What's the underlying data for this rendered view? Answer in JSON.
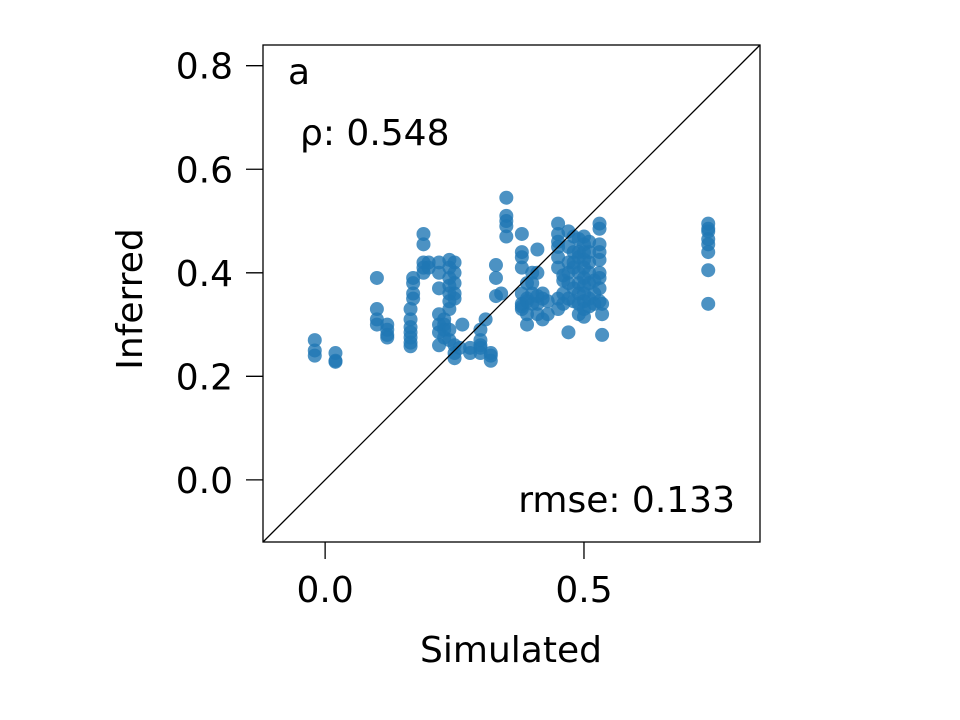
{
  "chart_data": {
    "type": "scatter",
    "panel_label": "a",
    "xlabel": "Simulated",
    "ylabel": "Inferred",
    "xlim": [
      -0.12,
      0.84
    ],
    "ylim": [
      -0.12,
      0.84
    ],
    "xticks": [
      0.0,
      0.5
    ],
    "xtick_labels": [
      "0.0",
      "0.5"
    ],
    "yticks": [
      0.0,
      0.2,
      0.4,
      0.6,
      0.8
    ],
    "ytick_labels": [
      "0.0",
      "0.2",
      "0.4",
      "0.6",
      "0.8"
    ],
    "grid": false,
    "identity_line": true,
    "annotations": {
      "rho": "ρ: 0.548",
      "rmse": "rmse: 0.133"
    },
    "point_color": "#1f77b4",
    "points": [
      [
        -0.02,
        0.27
      ],
      [
        -0.02,
        0.25
      ],
      [
        -0.02,
        0.24
      ],
      [
        0.02,
        0.245
      ],
      [
        0.02,
        0.23
      ],
      [
        0.02,
        0.228
      ],
      [
        0.1,
        0.39
      ],
      [
        0.1,
        0.33
      ],
      [
        0.1,
        0.31
      ],
      [
        0.1,
        0.3
      ],
      [
        0.12,
        0.3
      ],
      [
        0.12,
        0.29
      ],
      [
        0.12,
        0.28
      ],
      [
        0.12,
        0.275
      ],
      [
        0.165,
        0.33
      ],
      [
        0.165,
        0.31
      ],
      [
        0.165,
        0.295
      ],
      [
        0.165,
        0.285
      ],
      [
        0.165,
        0.275
      ],
      [
        0.165,
        0.265
      ],
      [
        0.165,
        0.258
      ],
      [
        0.17,
        0.39
      ],
      [
        0.17,
        0.36
      ],
      [
        0.17,
        0.35
      ],
      [
        0.17,
        0.38
      ],
      [
        0.19,
        0.475
      ],
      [
        0.19,
        0.455
      ],
      [
        0.19,
        0.42
      ],
      [
        0.19,
        0.41
      ],
      [
        0.19,
        0.4
      ],
      [
        0.2,
        0.42
      ],
      [
        0.2,
        0.41
      ],
      [
        0.22,
        0.42
      ],
      [
        0.22,
        0.4
      ],
      [
        0.22,
        0.37
      ],
      [
        0.22,
        0.32
      ],
      [
        0.22,
        0.3
      ],
      [
        0.22,
        0.285
      ],
      [
        0.22,
        0.26
      ],
      [
        0.23,
        0.31
      ],
      [
        0.23,
        0.3
      ],
      [
        0.23,
        0.29
      ],
      [
        0.23,
        0.275
      ],
      [
        0.24,
        0.425
      ],
      [
        0.24,
        0.41
      ],
      [
        0.24,
        0.39
      ],
      [
        0.24,
        0.375
      ],
      [
        0.24,
        0.36
      ],
      [
        0.24,
        0.345
      ],
      [
        0.24,
        0.33
      ],
      [
        0.24,
        0.29
      ],
      [
        0.24,
        0.27
      ],
      [
        0.25,
        0.42
      ],
      [
        0.25,
        0.4
      ],
      [
        0.25,
        0.38
      ],
      [
        0.25,
        0.36
      ],
      [
        0.25,
        0.35
      ],
      [
        0.25,
        0.26
      ],
      [
        0.25,
        0.245
      ],
      [
        0.25,
        0.235
      ],
      [
        0.26,
        0.255
      ],
      [
        0.265,
        0.3
      ],
      [
        0.28,
        0.255
      ],
      [
        0.28,
        0.245
      ],
      [
        0.3,
        0.29
      ],
      [
        0.3,
        0.27
      ],
      [
        0.3,
        0.26
      ],
      [
        0.3,
        0.255
      ],
      [
        0.3,
        0.245
      ],
      [
        0.31,
        0.31
      ],
      [
        0.32,
        0.245
      ],
      [
        0.32,
        0.24
      ],
      [
        0.32,
        0.23
      ],
      [
        0.33,
        0.415
      ],
      [
        0.33,
        0.39
      ],
      [
        0.33,
        0.355
      ],
      [
        0.34,
        0.36
      ],
      [
        0.35,
        0.545
      ],
      [
        0.35,
        0.51
      ],
      [
        0.35,
        0.5
      ],
      [
        0.35,
        0.49
      ],
      [
        0.35,
        0.47
      ],
      [
        0.38,
        0.475
      ],
      [
        0.38,
        0.44
      ],
      [
        0.38,
        0.43
      ],
      [
        0.38,
        0.41
      ],
      [
        0.38,
        0.36
      ],
      [
        0.38,
        0.34
      ],
      [
        0.38,
        0.335
      ],
      [
        0.38,
        0.33
      ],
      [
        0.39,
        0.38
      ],
      [
        0.39,
        0.35
      ],
      [
        0.39,
        0.32
      ],
      [
        0.39,
        0.3
      ],
      [
        0.39,
        0.345
      ],
      [
        0.4,
        0.4
      ],
      [
        0.4,
        0.38
      ],
      [
        0.4,
        0.36
      ],
      [
        0.4,
        0.34
      ],
      [
        0.41,
        0.445
      ],
      [
        0.41,
        0.4
      ],
      [
        0.41,
        0.355
      ],
      [
        0.41,
        0.34
      ],
      [
        0.41,
        0.32
      ],
      [
        0.42,
        0.36
      ],
      [
        0.42,
        0.35
      ],
      [
        0.42,
        0.31
      ],
      [
        0.43,
        0.32
      ],
      [
        0.43,
        0.345
      ],
      [
        0.45,
        0.495
      ],
      [
        0.45,
        0.475
      ],
      [
        0.45,
        0.46
      ],
      [
        0.45,
        0.45
      ],
      [
        0.45,
        0.43
      ],
      [
        0.45,
        0.41
      ],
      [
        0.45,
        0.35
      ],
      [
        0.45,
        0.33
      ],
      [
        0.46,
        0.385
      ],
      [
        0.46,
        0.36
      ],
      [
        0.46,
        0.34
      ],
      [
        0.46,
        0.395
      ],
      [
        0.47,
        0.48
      ],
      [
        0.47,
        0.45
      ],
      [
        0.47,
        0.42
      ],
      [
        0.47,
        0.4
      ],
      [
        0.47,
        0.38
      ],
      [
        0.47,
        0.35
      ],
      [
        0.47,
        0.285
      ],
      [
        0.48,
        0.47
      ],
      [
        0.48,
        0.44
      ],
      [
        0.48,
        0.42
      ],
      [
        0.48,
        0.41
      ],
      [
        0.48,
        0.37
      ],
      [
        0.48,
        0.345
      ],
      [
        0.49,
        0.465
      ],
      [
        0.49,
        0.44
      ],
      [
        0.49,
        0.43
      ],
      [
        0.49,
        0.4
      ],
      [
        0.49,
        0.38
      ],
      [
        0.49,
        0.36
      ],
      [
        0.49,
        0.34
      ],
      [
        0.49,
        0.32
      ],
      [
        0.5,
        0.47
      ],
      [
        0.5,
        0.455
      ],
      [
        0.5,
        0.44
      ],
      [
        0.5,
        0.425
      ],
      [
        0.5,
        0.41
      ],
      [
        0.5,
        0.39
      ],
      [
        0.5,
        0.375
      ],
      [
        0.5,
        0.36
      ],
      [
        0.5,
        0.345
      ],
      [
        0.5,
        0.33
      ],
      [
        0.5,
        0.315
      ],
      [
        0.51,
        0.46
      ],
      [
        0.51,
        0.44
      ],
      [
        0.51,
        0.42
      ],
      [
        0.51,
        0.4
      ],
      [
        0.51,
        0.38
      ],
      [
        0.51,
        0.35
      ],
      [
        0.51,
        0.335
      ],
      [
        0.52,
        0.385
      ],
      [
        0.52,
        0.36
      ],
      [
        0.52,
        0.34
      ],
      [
        0.53,
        0.495
      ],
      [
        0.53,
        0.485
      ],
      [
        0.53,
        0.455
      ],
      [
        0.53,
        0.44
      ],
      [
        0.53,
        0.425
      ],
      [
        0.53,
        0.4
      ],
      [
        0.53,
        0.39
      ],
      [
        0.53,
        0.37
      ],
      [
        0.53,
        0.345
      ],
      [
        0.535,
        0.34
      ],
      [
        0.535,
        0.32
      ],
      [
        0.535,
        0.28
      ],
      [
        0.74,
        0.495
      ],
      [
        0.74,
        0.485
      ],
      [
        0.74,
        0.48
      ],
      [
        0.74,
        0.465
      ],
      [
        0.74,
        0.455
      ],
      [
        0.74,
        0.44
      ],
      [
        0.74,
        0.405
      ],
      [
        0.74,
        0.34
      ]
    ]
  }
}
